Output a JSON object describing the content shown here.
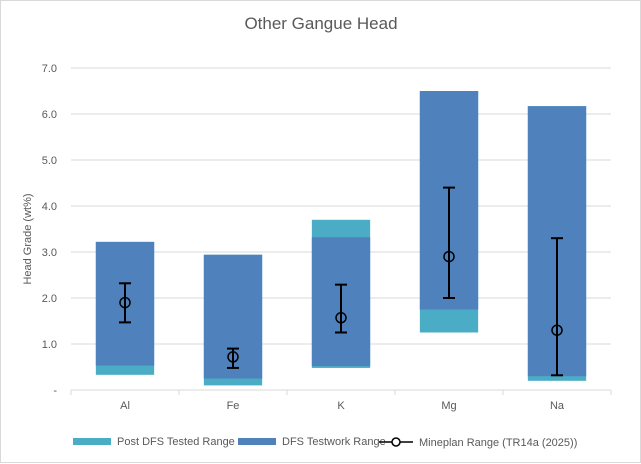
{
  "chart_data": {
    "type": "bar",
    "title": "Other Gangue Head",
    "xlabel": "",
    "ylabel": "Head Grade (wt%)",
    "ylim": [
      0,
      7
    ],
    "yticks": [
      0,
      1,
      2,
      3,
      4,
      5,
      6,
      7
    ],
    "ytick_labels": [
      "-",
      "1.0",
      "2.0",
      "3.0",
      "4.0",
      "5.0",
      "6.0",
      "7.0"
    ],
    "categories": [
      "Al",
      "Fe",
      "K",
      "Mg",
      "Na"
    ],
    "grid": true,
    "legend_position": "bottom",
    "series": [
      {
        "name": "Post DFS Tested Range",
        "color": "#4bacc6",
        "low": [
          0.33,
          0.1,
          0.48,
          1.25,
          0.2
        ],
        "high": [
          3.22,
          2.94,
          3.7,
          6.5,
          6.17
        ]
      },
      {
        "name": "DFS Testwork Range",
        "color": "#4f81bd",
        "low": [
          0.53,
          0.25,
          0.52,
          1.75,
          0.3
        ],
        "high": [
          3.22,
          2.94,
          3.32,
          6.5,
          6.17
        ]
      },
      {
        "name": "Mineplan Range (TR14a (2025))",
        "color": "#000000",
        "mid": [
          1.9,
          0.72,
          1.57,
          2.9,
          1.3
        ],
        "low": [
          1.47,
          0.48,
          1.25,
          2.0,
          0.32
        ],
        "high": [
          2.32,
          0.9,
          2.29,
          4.4,
          3.3
        ]
      }
    ]
  }
}
